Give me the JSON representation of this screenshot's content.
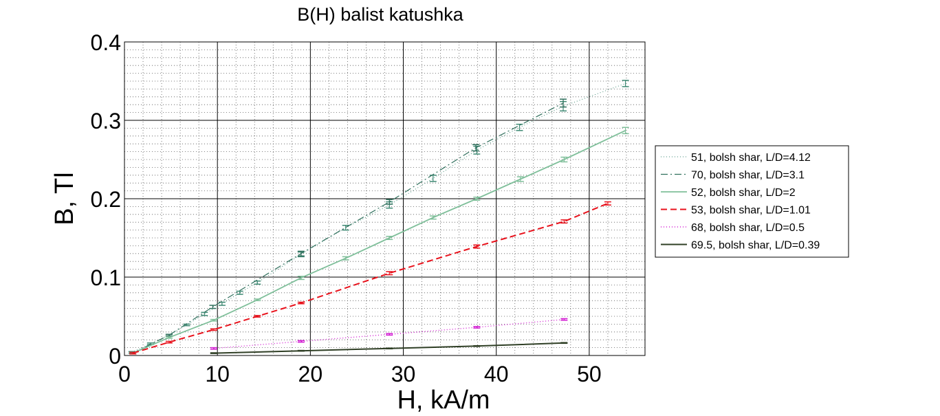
{
  "chart_data": {
    "type": "line",
    "title": "B(H)  balist katushka",
    "xlabel": "H, kA/m",
    "ylabel": "B, Tl",
    "xlim": [
      0,
      56
    ],
    "ylim": [
      0,
      0.4
    ],
    "xticks": [
      "0",
      "10",
      "20",
      "30",
      "40",
      "50"
    ],
    "yticks": [
      "0",
      "0.1",
      "0.2",
      "0.3",
      "0.4"
    ],
    "grid": true,
    "minor_grid": true,
    "legend_position": "right",
    "series": [
      {
        "name": "51, bolsh shar, L/D=4.12",
        "color": "#3f8a74",
        "dash": "1,3",
        "width": 1,
        "x": [
          0.8,
          2.8,
          4.8,
          6.7,
          8.6,
          10.5,
          12.4,
          14.3,
          19.0,
          23.8,
          28.5,
          33.2,
          37.9,
          42.5,
          47.2,
          53.9
        ],
        "y": [
          0.004,
          0.015,
          0.026,
          0.039,
          0.053,
          0.066,
          0.08,
          0.093,
          0.129,
          0.163,
          0.192,
          0.226,
          0.262,
          0.291,
          0.318,
          0.347
        ],
        "err": [
          0.001,
          0.001,
          0.001,
          0.001,
          0.002,
          0.002,
          0.002,
          0.002,
          0.003,
          0.003,
          0.004,
          0.004,
          0.005,
          0.004,
          0.006,
          0.004
        ]
      },
      {
        "name": "70, bolsh shar, L/D=3.1",
        "color": "#2f6f5c",
        "dash": "10,4,2,4",
        "width": 1.2,
        "x": [
          0.9,
          4.8,
          9.5,
          19.0,
          28.5,
          37.8,
          47.2
        ],
        "y": [
          0.003,
          0.026,
          0.062,
          0.13,
          0.196,
          0.265,
          0.322
        ],
        "err": [
          0.001,
          0.001,
          0.002,
          0.003,
          0.003,
          0.004,
          0.005
        ]
      },
      {
        "name": "52, bolsh shar, L/D=2",
        "color": "#7fbf9a",
        "dash": "",
        "width": 1.8,
        "x": [
          0.9,
          4.8,
          9.6,
          14.3,
          19.0,
          23.8,
          28.5,
          33.2,
          37.9,
          42.6,
          47.3,
          53.9
        ],
        "y": [
          0.003,
          0.023,
          0.045,
          0.071,
          0.099,
          0.124,
          0.15,
          0.176,
          0.2,
          0.225,
          0.25,
          0.287
        ],
        "err": [
          0.001,
          0.001,
          0.001,
          0.001,
          0.002,
          0.002,
          0.002,
          0.002,
          0.002,
          0.003,
          0.003,
          0.004
        ]
      },
      {
        "name": "53, bolsh shar, L/D=1.01",
        "color": "#e8111b",
        "dash": "9,5",
        "width": 2,
        "x": [
          0.9,
          4.8,
          9.6,
          14.3,
          19.0,
          28.5,
          37.9,
          47.3,
          52.0
        ],
        "y": [
          0.003,
          0.017,
          0.033,
          0.05,
          0.067,
          0.105,
          0.139,
          0.171,
          0.194
        ],
        "err": [
          0.001,
          0.001,
          0.001,
          0.001,
          0.001,
          0.002,
          0.002,
          0.002,
          0.002
        ]
      },
      {
        "name": "68, bolsh shar, L/D=0.5",
        "color": "#d21bd2",
        "dash": "1,3",
        "width": 1.4,
        "x": [
          9.6,
          19.0,
          28.5,
          37.9,
          47.3
        ],
        "y": [
          0.009,
          0.018,
          0.027,
          0.036,
          0.046
        ],
        "err": [
          0.001,
          0.001,
          0.001,
          0.001,
          0.001
        ]
      },
      {
        "name": "69.5, bolsh shar, L/D=0.39",
        "color": "#2f3f25",
        "dash": "",
        "width": 2,
        "x": [
          9.6,
          19.0,
          28.5,
          37.9,
          47.3
        ],
        "y": [
          0.003,
          0.006,
          0.009,
          0.012,
          0.016
        ],
        "err": [
          0.0005,
          0.0005,
          0.0005,
          0.0005,
          0.0005
        ]
      }
    ]
  }
}
